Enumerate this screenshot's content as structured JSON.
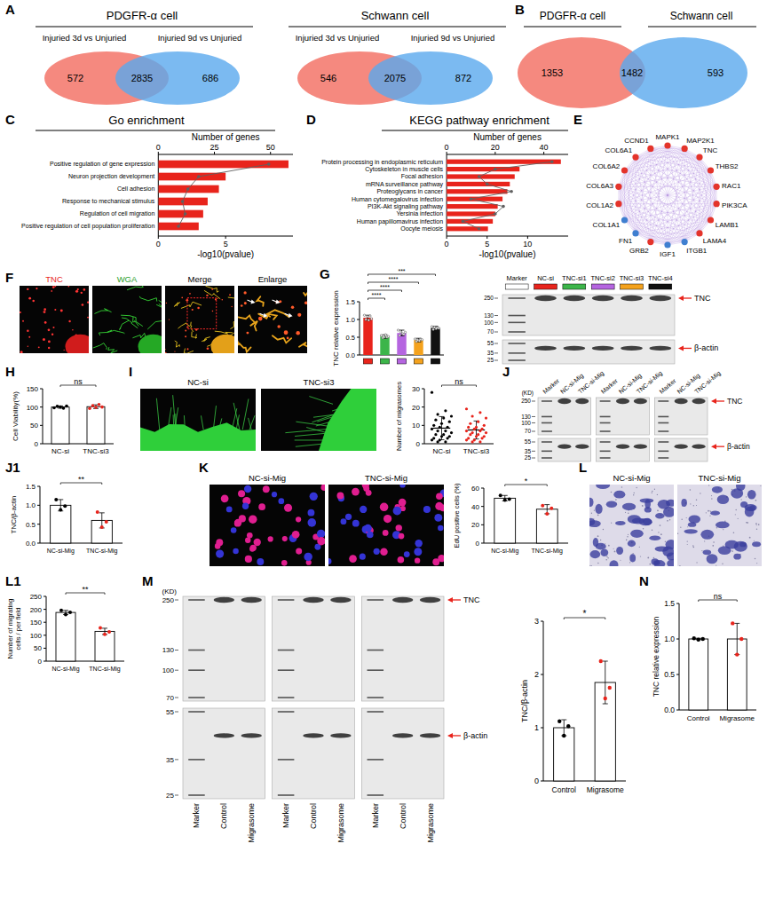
{
  "venn": [
    {
      "panel_label": "A",
      "title": "PDGFR-α cell",
      "sets": [
        "Injuried 3d vs Unjuried",
        "Injuried 9d vs Unjuried"
      ],
      "colors": [
        "#f26b5f",
        "#5aa9ee"
      ],
      "counts": [
        572,
        2835,
        686
      ]
    },
    {
      "title": "Schwann cell",
      "sets": [
        "Injuried 3d vs Unjuried",
        "Injuried 9d vs Unjuried"
      ],
      "colors": [
        "#f26b5f",
        "#5aa9ee"
      ],
      "counts": [
        546,
        2075,
        872
      ]
    },
    {
      "panel_label": "B",
      "sets": [
        "PDGFR-α cell",
        "Schwann cell"
      ],
      "colors": [
        "#f26b5f",
        "#5aa9ee"
      ],
      "counts": [
        1353,
        1482,
        593
      ]
    }
  ],
  "chart_data": [
    {
      "type": "bar",
      "panel_label": "C",
      "title": "Go enrichment",
      "orientation": "horizontal",
      "categories": [
        "Positive regulation of gene expression",
        "Neuron projection development",
        "Cell adhesion",
        "Response to mechanical stimulus",
        "Regulation of cell migration",
        "Positive regulation of cell population proliferation"
      ],
      "series": [
        {
          "name": "Number of genes",
          "color": "#e8241c",
          "values": [
            58,
            30,
            27,
            22,
            20,
            18
          ]
        },
        {
          "name": "-log10(pvalue)",
          "type": "line",
          "color": "#606060",
          "marker": "circle",
          "axis": "y2",
          "values": [
            8.2,
            3.0,
            2.2,
            1.8,
            2.0,
            1.5
          ]
        }
      ],
      "ylim": [
        0,
        60
      ],
      "yticks": [
        0,
        25,
        50
      ],
      "y2lim": [
        0,
        10
      ],
      "y2ticks": [
        0,
        5
      ]
    },
    {
      "type": "bar",
      "panel_label": "D",
      "title": "KEGG pathway enrichment",
      "orientation": "horizontal",
      "categories": [
        "Protein processing in endoplasmic reticulum",
        "Cytoskeleton in muscle cells",
        "Focal adhesion",
        "mRNA surveillance pathway",
        "Proteoglycans in cancer",
        "Human cytomegalovirus infection",
        "PI3K-Akt signaling pathway",
        "Yersinia infection",
        "Human papillomavirus infection",
        "Oocyte meiosis"
      ],
      "series": [
        {
          "name": "Number of genes",
          "color": "#e8241c",
          "values": [
            47,
            30,
            28,
            26,
            25,
            23,
            21,
            20,
            19,
            17
          ]
        },
        {
          "name": "-log10(pvalue)",
          "type": "line",
          "color": "#606060",
          "marker": "circle",
          "axis": "y2",
          "values": [
            13,
            6,
            4,
            5,
            8,
            3,
            7,
            6,
            2,
            4
          ]
        }
      ],
      "ylim": [
        0,
        50
      ],
      "yticks": [
        0,
        20,
        40
      ],
      "y2lim": [
        0,
        15
      ],
      "y2ticks": [
        0,
        5,
        10
      ]
    },
    {
      "type": "bar",
      "panel_label": "G",
      "ylabel": "TNC relative expression",
      "categories": [
        null,
        null,
        null,
        null,
        null
      ],
      "colors": [
        "#e8241c",
        "#3cb54a",
        "#b565e0",
        "#f4a21d",
        "#111111"
      ],
      "values": [
        1.05,
        0.52,
        0.62,
        0.42,
        0.76
      ],
      "errors": [
        0.07,
        0.05,
        0.08,
        0.05,
        0.05
      ],
      "points": [
        [
          1.12,
          1.0,
          1.08,
          0.98,
          1.1,
          1.02
        ],
        [
          0.55,
          0.48,
          0.5,
          0.57,
          0.5,
          0.52
        ],
        [
          0.7,
          0.55,
          0.65,
          0.6,
          0.58,
          0.64
        ],
        [
          0.45,
          0.38,
          0.42,
          0.4,
          0.44,
          0.43
        ],
        [
          0.8,
          0.72,
          0.78,
          0.74,
          0.77,
          0.75
        ]
      ],
      "ylim": [
        0,
        1.5
      ],
      "yticks": [
        {
          "value": 0,
          "label": "0.0"
        },
        {
          "value": 0.5,
          "label": "0.5"
        },
        {
          "value": 1,
          "label": "1.0"
        },
        {
          "value": 1.5,
          "label": "1.5"
        }
      ],
      "annotations": [
        "****",
        "****",
        "****",
        "***"
      ]
    },
    {
      "type": "bar",
      "panel_label": "H",
      "ylabel": "Cell Viability(%)",
      "categories": [
        "NC-si",
        "TNC-si3"
      ],
      "colors": [
        "#000000",
        "#e8241c"
      ],
      "values": [
        100,
        101
      ],
      "errors": [
        3,
        5
      ],
      "points": [
        [
          98,
          102,
          100,
          97,
          103
        ],
        [
          96,
          104,
          99,
          107,
          100
        ]
      ],
      "ylim": [
        0,
        150
      ],
      "yticks": [
        0,
        50,
        100,
        150
      ],
      "annotations": [
        "ns"
      ]
    },
    {
      "type": "scatter",
      "ylabel": "Number of migrasomes",
      "categories": [
        "NC-si",
        "TNC-si3"
      ],
      "colors": [
        "#000000",
        "#e8241c"
      ],
      "values": [
        8.5,
        7.5
      ],
      "errors": [
        6.3,
        4.9
      ],
      "points": [
        [
          28,
          18,
          16,
          15,
          14,
          13,
          12,
          11,
          10,
          9,
          9,
          8,
          7,
          7,
          6,
          5,
          5,
          4,
          4,
          3,
          3,
          2,
          2,
          1,
          1
        ],
        [
          19,
          17,
          15,
          14,
          12,
          11,
          10,
          9,
          9,
          8,
          8,
          7,
          7,
          6,
          6,
          5,
          5,
          4,
          4,
          3,
          3,
          2,
          2,
          1,
          1
        ]
      ],
      "ylim": [
        0,
        30
      ],
      "yticks": [
        0,
        10,
        20,
        30
      ],
      "annotations": [
        "ns"
      ]
    },
    {
      "type": "bar",
      "panel_label": "J1",
      "ylabel": "TNC/β-actin",
      "categories": [
        "NC-si-Mig",
        "TNC-si-Mig"
      ],
      "colors": [
        "#000000",
        "#e8241c"
      ],
      "values": [
        1.0,
        0.6
      ],
      "errors": [
        0.15,
        0.2
      ],
      "points": [
        [
          1.15,
          0.88,
          0.98
        ],
        [
          0.82,
          0.42,
          0.56
        ]
      ],
      "ylim": [
        0,
        1.5
      ],
      "yticks": [
        {
          "value": 0,
          "label": "0.0"
        },
        {
          "value": 0.5,
          "label": "0.5"
        },
        {
          "value": 1,
          "label": "1.0"
        },
        {
          "value": 1.5,
          "label": "1.5"
        }
      ],
      "annotations": [
        "**"
      ]
    },
    {
      "type": "bar",
      "ylabel": "EdU positive cells (%)",
      "categories": [
        "NC-si-Mig",
        "TNC-si-Mig"
      ],
      "colors": [
        "#000000",
        "#e8241c"
      ],
      "values": [
        49,
        37
      ],
      "errors": [
        3,
        5
      ],
      "points": [
        [
          52,
          47,
          48
        ],
        [
          41,
          32,
          38
        ]
      ],
      "ylim": [
        0,
        60
      ],
      "yticks": [
        0,
        20,
        40,
        60
      ],
      "annotations": [
        "*"
      ]
    },
    {
      "type": "bar",
      "panel_label": "L1",
      "ylabel": "Number of migrating cells / per field",
      "categories": [
        "NC-si-Mig",
        "TNC-si-Mig"
      ],
      "colors": [
        "#000000",
        "#e8241c"
      ],
      "values": [
        188,
        115
      ],
      "errors": [
        8,
        12
      ],
      "points": [
        [
          196,
          180,
          188
        ],
        [
          128,
          104,
          113
        ]
      ],
      "ylim": [
        0,
        250
      ],
      "yticks": [
        0,
        50,
        100,
        150,
        200,
        250
      ],
      "annotations": [
        "**"
      ]
    },
    {
      "type": "bar",
      "ylabel": "TNC/β-actin",
      "categories": [
        "Control",
        "Migrasome"
      ],
      "colors": [
        "#000000",
        "#e8241c"
      ],
      "values": [
        1.0,
        1.85
      ],
      "errors": [
        0.15,
        0.4
      ],
      "points": [
        [
          1.12,
          0.85,
          1.03
        ],
        [
          2.25,
          1.55,
          1.75
        ]
      ],
      "ylim": [
        0,
        3
      ],
      "yticks": [
        0,
        1,
        2,
        3
      ],
      "annotations": [
        "*"
      ]
    },
    {
      "type": "bar",
      "panel_label": "N",
      "ylabel": "TNC relative expression",
      "categories": [
        "Control",
        "Migrasome"
      ],
      "colors": [
        "#000000",
        "#e8241c"
      ],
      "values": [
        1.0,
        1.0
      ],
      "errors": [
        0.01,
        0.22
      ],
      "points": [
        [
          1.01,
          0.99,
          1.0
        ],
        [
          1.22,
          0.78,
          1.0
        ]
      ],
      "ylim": [
        0,
        1.5
      ],
      "yticks": [
        {
          "value": 0,
          "label": "0.0"
        },
        {
          "value": 0.5,
          "label": "0.5"
        },
        {
          "value": 1,
          "label": "1.0"
        },
        {
          "value": 1.5,
          "label": "1.5"
        }
      ],
      "annotations": [
        "ns"
      ]
    }
  ],
  "network": {
    "panel_label": "E",
    "nodes": [
      {
        "label": "MAPK1",
        "color": "#e4342b"
      },
      {
        "label": "MAP2K1",
        "color": "#e4342b"
      },
      {
        "label": "TNC",
        "color": "#e4342b"
      },
      {
        "label": "THBS2",
        "color": "#e4342b"
      },
      {
        "label": "RAC1",
        "color": "#e4342b"
      },
      {
        "label": "PIK3CA",
        "color": "#e4342b"
      },
      {
        "label": "LAMB1",
        "color": "#e4342b"
      },
      {
        "label": "LAMA4",
        "color": "#e4342b"
      },
      {
        "label": "ITGB1",
        "color": "#3f7fd0"
      },
      {
        "label": "IGF1",
        "color": "#3f7fd0"
      },
      {
        "label": "GRB2",
        "color": "#e4342b"
      },
      {
        "label": "FN1",
        "color": "#3f7fd0"
      },
      {
        "label": "COL1A1",
        "color": "#3f7fd0"
      },
      {
        "label": "COL1A2",
        "color": "#e4342b"
      },
      {
        "label": "COL6A3",
        "color": "#e4342b"
      },
      {
        "label": "COL6A2",
        "color": "#e4342b"
      },
      {
        "label": "COL6A1",
        "color": "#e4342b"
      },
      {
        "label": "CCND1",
        "color": "#e4342b"
      }
    ]
  },
  "micrographs": [
    {
      "panel_label": "F",
      "titles": [
        "TNC",
        "WGA",
        "Merge",
        "Enlarge"
      ],
      "title_colors": [
        "#e8241c",
        "#2ca02c",
        "#000000",
        "#000000"
      ]
    },
    {
      "panel_label": "I",
      "titles": [
        "NC-si",
        "TNC-si3"
      ]
    },
    {
      "panel_label": "K",
      "titles": [
        "NC-si-Mig",
        "TNC-si-Mig"
      ]
    },
    {
      "panel_label": "L",
      "titles": [
        "NC-si-Mig",
        "TNC-si-Mig"
      ]
    }
  ],
  "blots": [
    {
      "lanes": [
        "Marker",
        "NC-si",
        "TNC-si1",
        "TNC-si2",
        "TNC-si3",
        "TNC-si4"
      ],
      "lane_colors": [
        "#ffffff",
        "#e8241c",
        "#3cb54a",
        "#b565e0",
        "#f4a21d",
        "#111111"
      ],
      "ladder_upper": [
        250,
        130,
        100,
        70
      ],
      "ladder_lower": [
        55,
        35,
        25
      ],
      "targets": [
        "TNC",
        "β-actin"
      ]
    },
    {
      "panel_label": "J",
      "unit": "(KD)",
      "lanes": [
        "Marker",
        "NC-si-Mig",
        "TNC-si-Mig",
        "Marker",
        "NC-si-Mig",
        "TNC-si-Mig",
        "Marker",
        "NC-si-Mig",
        "TNC-si-Mig"
      ],
      "ladder_upper": [
        250,
        130,
        100,
        70
      ],
      "ladder_lower": [
        55,
        35,
        25
      ],
      "targets": [
        "TNC",
        "β-actin"
      ]
    },
    {
      "panel_label": "M",
      "unit": "(KD)",
      "lanes": [
        "Marker",
        "Control",
        "Migrasome",
        "Marker",
        "Control",
        "Migrasome",
        "Marker",
        "Control",
        "Migrasome"
      ],
      "ladder_upper": [
        250,
        130,
        100,
        70
      ],
      "ladder_lower": [
        55,
        35,
        25
      ],
      "targets": [
        "TNC",
        "β-actin"
      ]
    }
  ]
}
